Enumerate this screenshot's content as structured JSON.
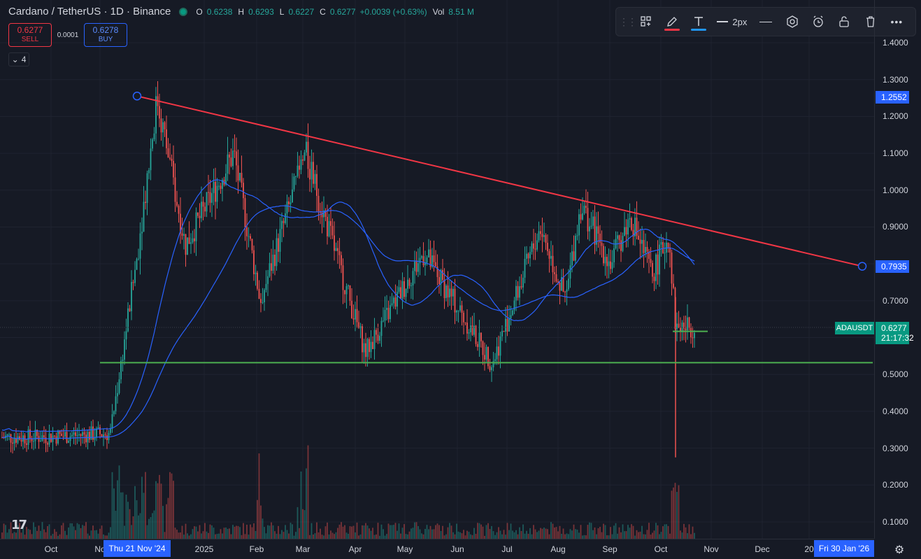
{
  "header": {
    "title": "Cardano / TetherUS · 1D · Binance",
    "ohlc": {
      "o_label": "O",
      "o": "0.6238",
      "h_label": "H",
      "h": "0.6293",
      "l_label": "L",
      "l": "0.6227",
      "c_label": "C",
      "c": "0.6277",
      "change": "+0.0039 (+0.63%)",
      "vol_label": "Vol",
      "vol": "8.51 M"
    }
  },
  "trade": {
    "sell_price": "0.6277",
    "sell_label": "SELL",
    "spread": "0.0001",
    "buy_price": "0.6278",
    "buy_label": "BUY"
  },
  "collapse": {
    "count": "4"
  },
  "toolbar": {
    "width_label": "2px"
  },
  "price_scale": {
    "ticks": [
      "1.4000",
      "1.3000",
      "1.2000",
      "1.1000",
      "1.0000",
      "0.9000",
      "0.8000",
      "0.7000",
      "0.6000",
      "0.5000",
      "0.4000",
      "0.3000",
      "0.2000",
      "0.1000"
    ],
    "upper_label": "1.2552",
    "lower_label": "0.7935",
    "last_price": "0.6277",
    "countdown": "21:17:32",
    "symbol": "ADAUSDT"
  },
  "time_scale": {
    "ticks": [
      "Oct",
      "No",
      "2025",
      "Feb",
      "Mar",
      "Apr",
      "May",
      "Jun",
      "Jul",
      "Aug",
      "Sep",
      "Oct",
      "Nov",
      "Dec",
      "20"
    ],
    "start_label": "Thu 21 Nov '24",
    "end_label": "Fri 30 Jan '26"
  },
  "colors": {
    "up": "#26a69a",
    "down": "#ef5350",
    "trend": "#f23645",
    "support": "#4caf50",
    "ma": "#2962ff",
    "bg": "#161a25"
  },
  "chart_data": {
    "type": "candlestick",
    "ylim": [
      0.05,
      1.45
    ],
    "trend_line": {
      "from": {
        "date": "2024-11-21",
        "price": 1.2552
      },
      "to": {
        "date": "2026-01-30",
        "price": 0.7935
      }
    },
    "support": [
      0.532,
      0.617
    ],
    "pivots": [
      {
        "date": "2024-09-20",
        "price": 0.33
      },
      {
        "date": "2024-11-05",
        "price": 0.34
      },
      {
        "date": "2024-11-21",
        "price": 0.82
      },
      {
        "date": "2024-12-03",
        "price": 1.25
      },
      {
        "date": "2024-12-20",
        "price": 0.85
      },
      {
        "date": "2025-01-18",
        "price": 1.1
      },
      {
        "date": "2025-02-03",
        "price": 0.7
      },
      {
        "date": "2025-03-02",
        "price": 1.1
      },
      {
        "date": "2025-04-07",
        "price": 0.56
      },
      {
        "date": "2025-05-12",
        "price": 0.83
      },
      {
        "date": "2025-06-22",
        "price": 0.53
      },
      {
        "date": "2025-07-21",
        "price": 0.9
      },
      {
        "date": "2025-08-05",
        "price": 0.7
      },
      {
        "date": "2025-08-14",
        "price": 0.96
      },
      {
        "date": "2025-09-01",
        "price": 0.8
      },
      {
        "date": "2025-09-13",
        "price": 0.93
      },
      {
        "date": "2025-09-26",
        "price": 0.77
      },
      {
        "date": "2025-10-06",
        "price": 0.88
      },
      {
        "date": "2025-10-10",
        "price": 0.63
      },
      {
        "date": "2025-10-27",
        "price": 0.6277
      }
    ]
  }
}
